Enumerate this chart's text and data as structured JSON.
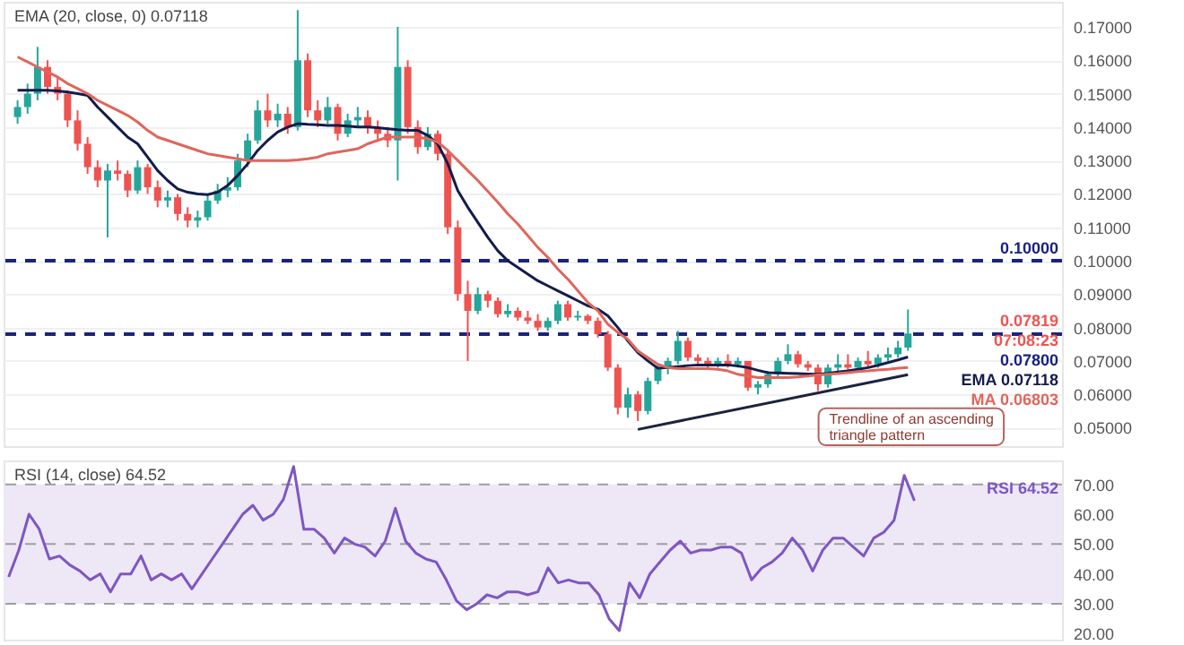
{
  "chart_data": [
    {
      "type": "candlestick",
      "categories": [
        null,
        null,
        null,
        null,
        null,
        null,
        null,
        null,
        null,
        null,
        null,
        null,
        null,
        null,
        null,
        null,
        null,
        null,
        null,
        null,
        null,
        null,
        null,
        null,
        null,
        null,
        null,
        null,
        null,
        null,
        null,
        null,
        null,
        null,
        null,
        null,
        null,
        null,
        null,
        null,
        null,
        null,
        null,
        null,
        null,
        null,
        null,
        null,
        null,
        null,
        null,
        null,
        null,
        null,
        null,
        null,
        null,
        null,
        null,
        null,
        null,
        null,
        null,
        null,
        null,
        null,
        null,
        null,
        null,
        null,
        null,
        null,
        null,
        null,
        null,
        null,
        null,
        null,
        null,
        null,
        null,
        null,
        null,
        null,
        null,
        null,
        null,
        null,
        null,
        null
      ],
      "ohlc": [
        [
          0.143,
          0.148,
          0.141,
          0.146
        ],
        [
          0.146,
          0.153,
          0.144,
          0.15
        ],
        [
          0.15,
          0.164,
          0.148,
          0.158
        ],
        [
          0.158,
          0.16,
          0.15,
          0.152
        ],
        [
          0.152,
          0.155,
          0.148,
          0.15
        ],
        [
          0.15,
          0.151,
          0.14,
          0.142
        ],
        [
          0.142,
          0.145,
          0.133,
          0.135
        ],
        [
          0.135,
          0.137,
          0.126,
          0.128
        ],
        [
          0.128,
          0.13,
          0.122,
          0.124
        ],
        [
          0.124,
          0.129,
          0.107,
          0.127
        ],
        [
          0.127,
          0.13,
          0.124,
          0.126
        ],
        [
          0.126,
          0.127,
          0.119,
          0.121
        ],
        [
          0.121,
          0.13,
          0.12,
          0.128
        ],
        [
          0.128,
          0.129,
          0.12,
          0.122
        ],
        [
          0.122,
          0.124,
          0.116,
          0.118
        ],
        [
          0.118,
          0.121,
          0.116,
          0.119
        ],
        [
          0.119,
          0.12,
          0.112,
          0.114
        ],
        [
          0.114,
          0.116,
          0.11,
          0.112
        ],
        [
          0.112,
          0.115,
          0.11,
          0.113
        ],
        [
          0.113,
          0.12,
          0.112,
          0.118
        ],
        [
          0.118,
          0.123,
          0.117,
          0.121
        ],
        [
          0.121,
          0.125,
          0.119,
          0.122
        ],
        [
          0.122,
          0.132,
          0.121,
          0.13
        ],
        [
          0.13,
          0.138,
          0.128,
          0.136
        ],
        [
          0.136,
          0.148,
          0.135,
          0.145
        ],
        [
          0.145,
          0.15,
          0.14,
          0.142
        ],
        [
          0.142,
          0.147,
          0.14,
          0.144
        ],
        [
          0.144,
          0.146,
          0.138,
          0.14
        ],
        [
          0.14,
          0.175,
          0.139,
          0.16
        ],
        [
          0.16,
          0.162,
          0.143,
          0.145
        ],
        [
          0.145,
          0.148,
          0.14,
          0.142
        ],
        [
          0.142,
          0.149,
          0.141,
          0.146
        ],
        [
          0.146,
          0.147,
          0.136,
          0.138
        ],
        [
          0.138,
          0.144,
          0.137,
          0.142
        ],
        [
          0.142,
          0.146,
          0.14,
          0.143
        ],
        [
          0.143,
          0.145,
          0.138,
          0.14
        ],
        [
          0.14,
          0.142,
          0.136,
          0.138
        ],
        [
          0.138,
          0.14,
          0.134,
          0.136
        ],
        [
          0.136,
          0.17,
          0.124,
          0.158
        ],
        [
          0.158,
          0.16,
          0.138,
          0.14
        ],
        [
          0.14,
          0.142,
          0.132,
          0.134
        ],
        [
          0.134,
          0.14,
          0.133,
          0.138
        ],
        [
          0.138,
          0.139,
          0.13,
          0.132
        ],
        [
          0.132,
          0.133,
          0.108,
          0.11
        ],
        [
          0.11,
          0.112,
          0.088,
          0.09
        ],
        [
          0.09,
          0.094,
          0.07,
          0.085
        ],
        [
          0.085,
          0.092,
          0.084,
          0.09
        ],
        [
          0.09,
          0.091,
          0.086,
          0.088
        ],
        [
          0.088,
          0.089,
          0.083,
          0.084
        ],
        [
          0.084,
          0.087,
          0.083,
          0.085
        ],
        [
          0.085,
          0.086,
          0.082,
          0.083
        ],
        [
          0.083,
          0.085,
          0.081,
          0.082
        ],
        [
          0.082,
          0.084,
          0.079,
          0.08
        ],
        [
          0.08,
          0.083,
          0.079,
          0.082
        ],
        [
          0.082,
          0.088,
          0.081,
          0.087
        ],
        [
          0.087,
          0.088,
          0.082,
          0.083
        ],
        [
          0.083,
          0.085,
          0.082,
          0.0835
        ],
        [
          0.0835,
          0.084,
          0.081,
          0.082
        ],
        [
          0.082,
          0.083,
          0.077,
          0.078
        ],
        [
          0.078,
          0.079,
          0.067,
          0.068
        ],
        [
          0.068,
          0.069,
          0.054,
          0.056
        ],
        [
          0.056,
          0.062,
          0.053,
          0.06
        ],
        [
          0.06,
          0.061,
          0.052,
          0.055
        ],
        [
          0.055,
          0.065,
          0.054,
          0.064
        ],
        [
          0.064,
          0.069,
          0.063,
          0.068
        ],
        [
          0.068,
          0.071,
          0.066,
          0.07
        ],
        [
          0.07,
          0.079,
          0.069,
          0.076
        ],
        [
          0.076,
          0.077,
          0.07,
          0.071
        ],
        [
          0.071,
          0.072,
          0.069,
          0.07
        ],
        [
          0.07,
          0.071,
          0.068,
          0.069
        ],
        [
          0.069,
          0.071,
          0.068,
          0.07
        ],
        [
          0.07,
          0.072,
          0.068,
          0.069
        ],
        [
          0.069,
          0.071,
          0.068,
          0.07
        ],
        [
          0.07,
          0.07,
          0.061,
          0.062
        ],
        [
          0.062,
          0.064,
          0.06,
          0.063
        ],
        [
          0.063,
          0.067,
          0.062,
          0.066
        ],
        [
          0.066,
          0.071,
          0.065,
          0.07
        ],
        [
          0.07,
          0.075,
          0.069,
          0.072
        ],
        [
          0.072,
          0.073,
          0.068,
          0.069
        ],
        [
          0.069,
          0.07,
          0.067,
          0.068
        ],
        [
          0.068,
          0.069,
          0.061,
          0.063
        ],
        [
          0.063,
          0.069,
          0.062,
          0.068
        ],
        [
          0.068,
          0.072,
          0.067,
          0.069
        ],
        [
          0.069,
          0.072,
          0.067,
          0.068
        ],
        [
          0.068,
          0.071,
          0.067,
          0.07
        ],
        [
          0.07,
          0.073,
          0.068,
          0.069
        ],
        [
          0.069,
          0.072,
          0.068,
          0.071
        ],
        [
          0.071,
          0.074,
          0.07,
          0.072
        ],
        [
          0.072,
          0.076,
          0.071,
          0.074
        ],
        [
          0.074,
          0.0854,
          0.073,
          0.07819
        ]
      ],
      "series": [
        {
          "name": "EMA",
          "type": "line",
          "color": "#131c4b",
          "values": [
            0.151,
            0.151,
            0.151,
            0.151,
            0.1508,
            0.1505,
            0.15,
            0.1495,
            0.146,
            0.143,
            0.14,
            0.137,
            0.135,
            0.131,
            0.127,
            0.124,
            0.1215,
            0.1205,
            0.12,
            0.1198,
            0.1205,
            0.1225,
            0.1255,
            0.129,
            0.133,
            0.136,
            0.1385,
            0.14,
            0.141,
            0.1408,
            0.1407,
            0.1405,
            0.1405,
            0.1403,
            0.14,
            0.14,
            0.1398,
            0.1395,
            0.1392,
            0.139,
            0.139,
            0.1375,
            0.135,
            0.129,
            0.121,
            0.116,
            0.1115,
            0.107,
            0.103,
            0.1,
            0.098,
            0.096,
            0.094,
            0.0925,
            0.091,
            0.0895,
            0.088,
            0.0865,
            0.0855,
            0.0835,
            0.08,
            0.076,
            0.0725,
            0.07,
            0.0678,
            0.068,
            0.0683,
            0.0686,
            0.0688,
            0.0688,
            0.0688,
            0.0688,
            0.0685,
            0.068,
            0.0672,
            0.0665,
            0.0664,
            0.0663,
            0.0662,
            0.0661,
            0.066,
            0.0663,
            0.0667,
            0.067,
            0.0675,
            0.068,
            0.0687,
            0.0695,
            0.0703,
            0.07118
          ],
          "value_labels": [
            null,
            null,
            null,
            null,
            null,
            null,
            null,
            null,
            null,
            null,
            null,
            null,
            null,
            null,
            null,
            null,
            null,
            null,
            null,
            null,
            null,
            null,
            null,
            null,
            null,
            null,
            null,
            null,
            null,
            null,
            null,
            null,
            null,
            null,
            null,
            null,
            null,
            null,
            null,
            null,
            null,
            null,
            null,
            null,
            null,
            null,
            null,
            null,
            null,
            null,
            null,
            null,
            null,
            null,
            null,
            null,
            null,
            null,
            null,
            null,
            null,
            null,
            null,
            null,
            null,
            null,
            null,
            null,
            null,
            null,
            null,
            null,
            null,
            null,
            null,
            null,
            null,
            null,
            null,
            null,
            null,
            null,
            null,
            null,
            null,
            null,
            null,
            null,
            null,
            "0.07118"
          ]
        },
        {
          "name": "MA",
          "type": "line",
          "color": "#e0665c",
          "values": [
            0.161,
            0.1595,
            0.158,
            0.1565,
            0.155,
            0.153,
            0.1515,
            0.15,
            0.148,
            0.1465,
            0.145,
            0.1435,
            0.1415,
            0.139,
            0.137,
            0.136,
            0.135,
            0.134,
            0.133,
            0.132,
            0.1315,
            0.131,
            0.1305,
            0.13,
            0.13,
            0.13,
            0.13,
            0.13,
            0.1302,
            0.1305,
            0.131,
            0.132,
            0.1325,
            0.133,
            0.1335,
            0.135,
            0.136,
            0.137,
            0.137,
            0.137,
            0.137,
            0.1365,
            0.1355,
            0.133,
            0.13,
            0.127,
            0.124,
            0.1208,
            0.1175,
            0.114,
            0.111,
            0.1075,
            0.104,
            0.101,
            0.0975,
            0.0945,
            0.091,
            0.0875,
            0.085,
            0.081,
            0.0785,
            0.0765,
            0.073,
            0.071,
            0.069,
            0.068,
            0.0677,
            0.0677,
            0.0677,
            0.0677,
            0.0675,
            0.067,
            0.066,
            0.0655,
            0.065,
            0.065,
            0.065,
            0.065,
            0.0652,
            0.0655,
            0.0658,
            0.066,
            0.0662,
            0.0665,
            0.0668,
            0.067,
            0.0673,
            0.0675,
            0.0678,
            0.06803
          ],
          "value_labels": [
            null,
            null,
            null,
            null,
            null,
            null,
            null,
            null,
            null,
            null,
            null,
            null,
            null,
            null,
            null,
            null,
            null,
            null,
            null,
            null,
            null,
            null,
            null,
            null,
            null,
            null,
            null,
            null,
            null,
            null,
            null,
            null,
            null,
            null,
            null,
            null,
            null,
            null,
            null,
            null,
            null,
            null,
            null,
            null,
            null,
            null,
            null,
            null,
            null,
            null,
            null,
            null,
            null,
            null,
            null,
            null,
            null,
            null,
            null,
            null,
            null,
            null,
            null,
            null,
            null,
            null,
            null,
            null,
            null,
            null,
            null,
            null,
            null,
            null,
            null,
            null,
            null,
            null,
            null,
            null,
            null,
            null,
            null,
            null,
            null,
            null,
            null,
            null,
            null,
            "0.06803"
          ]
        },
        {
          "type": "line",
          "color": "#1c2340",
          "values": [
            null,
            null,
            null,
            null,
            null,
            null,
            null,
            null,
            null,
            null,
            null,
            null,
            null,
            null,
            null,
            null,
            null,
            null,
            null,
            null,
            null,
            null,
            null,
            null,
            null,
            null,
            null,
            null,
            null,
            null,
            null,
            null,
            null,
            null,
            null,
            null,
            null,
            null,
            null,
            null,
            null,
            null,
            null,
            null,
            null,
            null,
            null,
            null,
            null,
            null,
            null,
            null,
            null,
            null,
            null,
            null,
            null,
            null,
            null,
            null,
            null,
            null,
            0.0495,
            null,
            null,
            null,
            null,
            null,
            null,
            null,
            null,
            null,
            null,
            null,
            null,
            null,
            null,
            null,
            null,
            null,
            null,
            null,
            null,
            null,
            null,
            null,
            null,
            null,
            null,
            0.0659
          ]
        }
      ],
      "ylim": [
        0.0445,
        0.1775
      ],
      "yticks": [
        {
          "value": 0.05,
          "label": "0.05000"
        },
        {
          "value": 0.06,
          "label": "0.06000"
        },
        {
          "value": 0.07,
          "label": "0.07000"
        },
        {
          "value": 0.08,
          "label": "0.08000"
        },
        {
          "value": 0.09,
          "label": "0.09000"
        },
        {
          "value": 0.1,
          "label": "0.10000"
        },
        {
          "value": 0.11,
          "label": "0.11000"
        },
        {
          "value": 0.12,
          "label": "0.12000"
        },
        {
          "value": 0.13,
          "label": "0.13000"
        },
        {
          "value": 0.14,
          "label": "0.14000"
        },
        {
          "value": 0.15,
          "label": "0.15000"
        },
        {
          "value": 0.16,
          "label": "0.16000"
        },
        {
          "value": 0.17,
          "label": "0.17000"
        }
      ],
      "grid": "y",
      "tick_labels": "y",
      "line_style": "solid",
      "ref_lines": [
        {
          "axis": "y",
          "value": 0.1,
          "label": "0.10000",
          "color": "#1a237e",
          "line_style": "dashed"
        },
        {
          "axis": "y",
          "value": 0.078,
          "label": "0.07800",
          "color": "#1a237e",
          "line_style": "dashed"
        }
      ],
      "annotations": [
        "EMA (20, close, 0) 0.07118",
        "Trendline of an ascending triangle pattern",
        {
          "text": "0.07819",
          "y": 0.07819
        },
        {
          "text": "07:08:23",
          "y": 0.07819
        }
      ]
    },
    {
      "type": "line",
      "categories": [
        null,
        null,
        null,
        null,
        null,
        null,
        null,
        null,
        null,
        null,
        null,
        null,
        null,
        null,
        null,
        null,
        null,
        null,
        null,
        null,
        null,
        null,
        null,
        null,
        null,
        null,
        null,
        null,
        null,
        null,
        null,
        null,
        null,
        null,
        null,
        null,
        null,
        null,
        null,
        null,
        null,
        null,
        null,
        null,
        null,
        null,
        null,
        null,
        null,
        null,
        null,
        null,
        null,
        null,
        null,
        null,
        null,
        null,
        null,
        null,
        null,
        null,
        null,
        null,
        null,
        null,
        null,
        null,
        null,
        null,
        null,
        null,
        null,
        null,
        null,
        null,
        null,
        null,
        null,
        null,
        null,
        null,
        null,
        null,
        null,
        null,
        null,
        null,
        null,
        null
      ],
      "series": [
        {
          "name": "RSI",
          "color": "#7e57c2",
          "values": [
            39,
            48,
            60,
            55,
            45,
            46,
            43,
            41,
            38,
            40,
            34,
            40,
            40,
            46,
            38,
            40,
            38,
            40,
            35,
            40,
            45,
            50,
            55,
            60,
            63,
            58,
            60,
            65,
            76,
            55,
            55,
            52,
            47,
            52,
            50,
            49,
            46,
            51,
            62,
            51,
            47,
            45,
            44,
            38,
            31,
            28,
            30,
            33,
            32,
            34,
            34,
            33,
            34,
            42,
            37,
            38,
            37,
            37,
            33,
            25,
            21,
            37,
            32,
            40,
            44,
            48,
            51,
            47,
            48,
            48,
            49,
            49,
            47,
            38,
            42,
            44,
            47,
            52,
            48,
            41,
            48,
            52,
            52,
            49,
            46,
            52,
            54,
            58,
            73,
            64.52
          ],
          "value_labels": [
            null,
            null,
            null,
            null,
            null,
            null,
            null,
            null,
            null,
            null,
            null,
            null,
            null,
            null,
            null,
            null,
            null,
            null,
            null,
            null,
            null,
            null,
            null,
            null,
            null,
            null,
            null,
            null,
            null,
            null,
            null,
            null,
            null,
            null,
            null,
            null,
            null,
            null,
            null,
            null,
            null,
            null,
            null,
            null,
            null,
            null,
            null,
            null,
            null,
            null,
            null,
            null,
            null,
            null,
            null,
            null,
            null,
            null,
            null,
            null,
            null,
            null,
            null,
            null,
            null,
            null,
            null,
            null,
            null,
            null,
            null,
            null,
            null,
            null,
            null,
            null,
            null,
            null,
            null,
            null,
            null,
            null,
            null,
            null,
            null,
            null,
            null,
            null,
            null,
            "64.52"
          ]
        }
      ],
      "ylim": [
        18,
        78
      ],
      "yticks": [
        {
          "value": 20,
          "label": "20.00"
        },
        {
          "value": 30,
          "label": "30.00"
        },
        {
          "value": 40,
          "label": "40.00"
        },
        {
          "value": 50,
          "label": "50.00"
        },
        {
          "value": 60,
          "label": "60.00"
        },
        {
          "value": 70,
          "label": "70.00"
        }
      ],
      "grid": false,
      "tick_labels": "y",
      "line_style": "solid",
      "bands": [
        {
          "axis": "y",
          "from": 30,
          "to": 70,
          "color": "#ede7f6"
        }
      ],
      "ref_lines": [
        {
          "axis": "y",
          "value": 70,
          "color": "#9e9e9e",
          "line_style": "dashed"
        },
        {
          "axis": "y",
          "value": 50,
          "color": "#9e9e9e",
          "line_style": "dashed"
        },
        {
          "axis": "y",
          "value": 30,
          "color": "#9e9e9e",
          "line_style": "dashed"
        }
      ],
      "annotations": [
        "RSI (14, close) 64.52"
      ]
    }
  ]
}
